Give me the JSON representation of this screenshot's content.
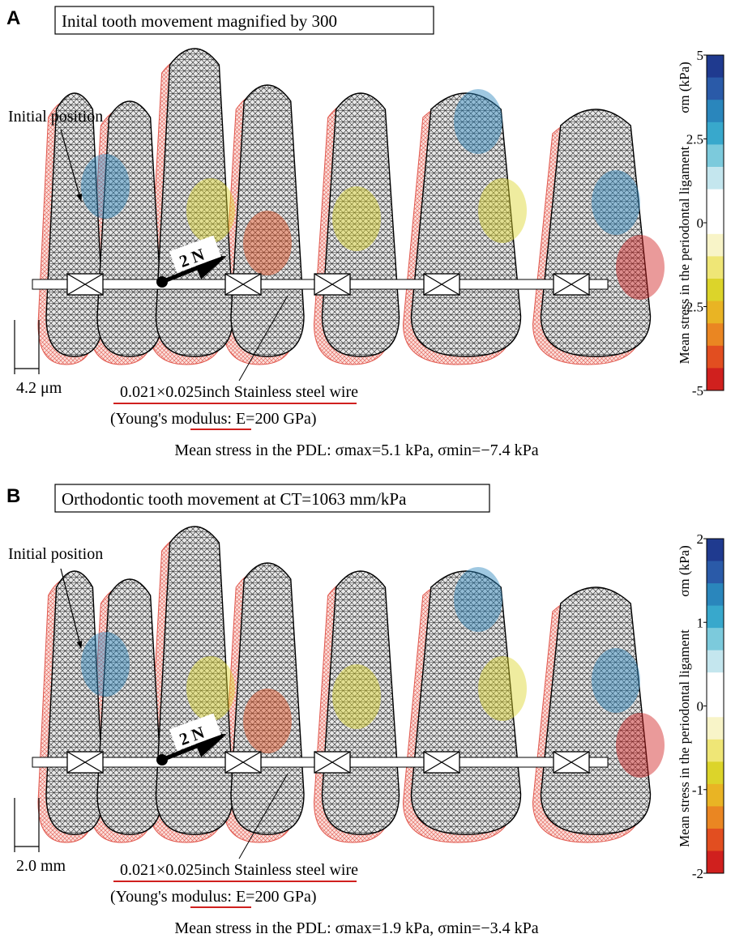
{
  "panels": [
    {
      "letter": "A",
      "title": "Inital tooth movement magnified by 300",
      "initial_label": "Initial position",
      "force_label": "2 N",
      "scale_label": "4.2 μm",
      "wire_label": "0.021×0.025inch Stainless steel wire",
      "modulus_label": "(Young's modulus: E=200 GPa)",
      "stress_summary": "Mean stress in the PDL: σmax=5.1 kPa, σmin=−7.4 kPa",
      "colorbar": {
        "label": "Mean stress in the periodontal ligament",
        "unit_label": "σm (kPa)",
        "lim": [
          -5,
          5
        ],
        "ticks": [
          5,
          2.5,
          0,
          -2.5,
          -5
        ],
        "colors": [
          "#1f3a8f",
          "#2a5aa8",
          "#2a86bc",
          "#38a8cc",
          "#7ccadc",
          "#c4e6ee",
          "#ffffff",
          "#ffffff",
          "#f8f4c8",
          "#efe676",
          "#dcd42a",
          "#e9b424",
          "#ea8622",
          "#e24e20",
          "#d0201e"
        ]
      }
    },
    {
      "letter": "B",
      "title": "Orthodontic tooth movement at CT=1063 mm/kPa",
      "initial_label": "Initial position",
      "force_label": "2 N",
      "scale_label": "2.0 mm",
      "wire_label": "0.021×0.025inch Stainless steel wire",
      "modulus_label": "(Young's modulus: E=200 GPa)",
      "stress_summary": "Mean stress in the PDL: σmax=1.9 kPa, σmin=−3.4 kPa",
      "colorbar": {
        "label": "Mean stress in the periodontal ligament",
        "unit_label": "σm (kPa)",
        "lim": [
          -2,
          2
        ],
        "ticks": [
          2,
          1,
          0,
          -1,
          -2
        ],
        "colors": [
          "#1f3a8f",
          "#2a5aa8",
          "#2a86bc",
          "#38a8cc",
          "#7ccadc",
          "#c4e6ee",
          "#ffffff",
          "#ffffff",
          "#f8f4c8",
          "#efe676",
          "#dcd42a",
          "#e9b424",
          "#ea8622",
          "#e24e20",
          "#d0201e"
        ]
      }
    }
  ]
}
